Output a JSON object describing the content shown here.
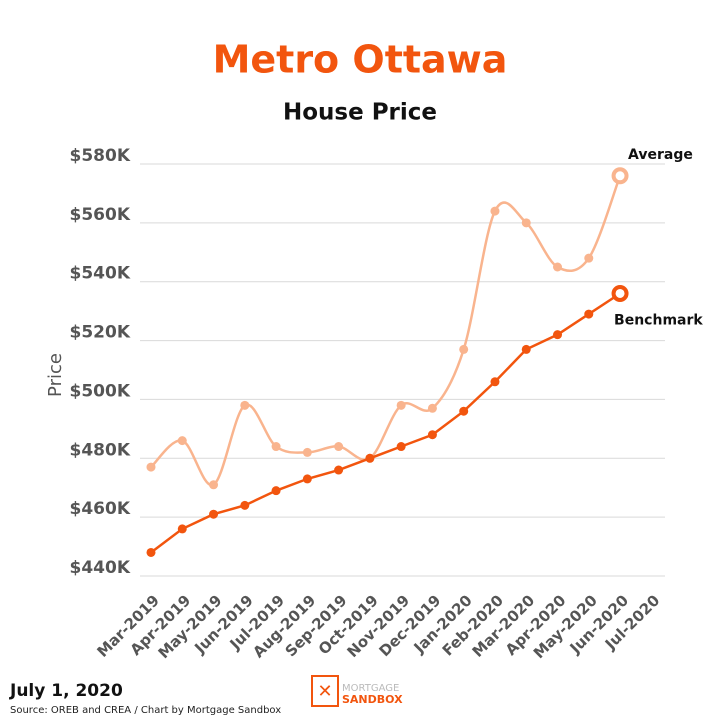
{
  "chart_data": {
    "type": "line",
    "title": "Metro Ottawa",
    "subtitle": "House Price",
    "y_label": "Price",
    "categories": [
      "Mar-2019",
      "Apr-2019",
      "May-2019",
      "Jun-2019",
      "Jul-2019",
      "Aug-2019",
      "Sep-2019",
      "Oct-2019",
      "Nov-2019",
      "Dec-2019",
      "Jan-2020",
      "Feb-2020",
      "Mar-2020",
      "Apr-2020",
      "May-2020",
      "Jun-2020",
      "Jul-2020"
    ],
    "series": [
      {
        "name": "Average",
        "color": "#f9b48e",
        "smooth": true,
        "values": [
          477000,
          486000,
          471000,
          498000,
          484000,
          482000,
          484000,
          480000,
          498000,
          497000,
          517000,
          564000,
          560000,
          545000,
          548000,
          576000,
          null
        ]
      },
      {
        "name": "Benchmark",
        "color": "#f2550e",
        "smooth": false,
        "values": [
          448000,
          456000,
          461000,
          464000,
          469000,
          473000,
          476000,
          480000,
          484000,
          488000,
          496000,
          506000,
          517000,
          522000,
          529000,
          536000,
          null
        ]
      }
    ],
    "ylim": [
      440000,
      580000
    ],
    "yticks": [
      {
        "value": 440000,
        "label": "$440K"
      },
      {
        "value": 460000,
        "label": "$460K"
      },
      {
        "value": 480000,
        "label": "$480K"
      },
      {
        "value": 500000,
        "label": "$500K"
      },
      {
        "value": 520000,
        "label": "$520K"
      },
      {
        "value": 540000,
        "label": "$540K"
      },
      {
        "value": 560000,
        "label": "$560K"
      },
      {
        "value": 580000,
        "label": "$580K"
      }
    ],
    "grid": true,
    "date_label": "July 1, 2020",
    "source": "Source: OREB  and CREA  / Chart by Mortgage Sandbox",
    "logo_text": [
      "MORTGAGE",
      "SANDBOX"
    ]
  }
}
